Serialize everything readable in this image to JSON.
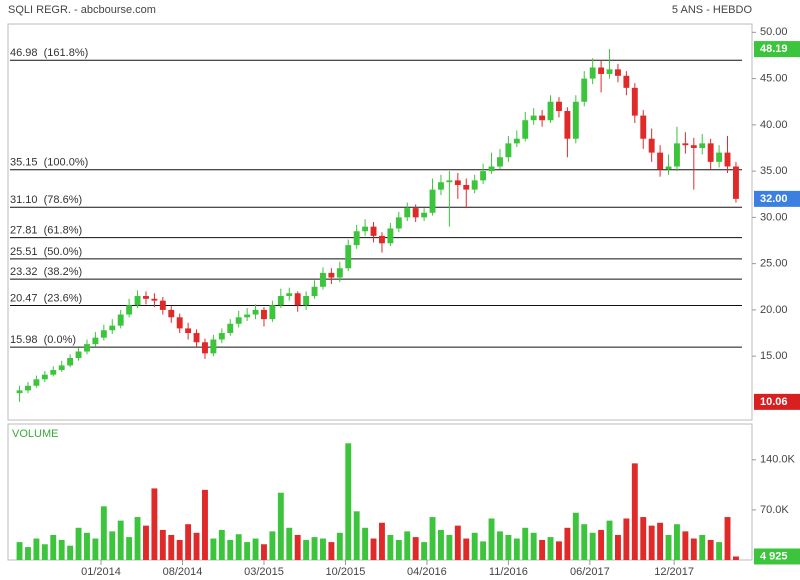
{
  "chart_data": {
    "type": "candlestick",
    "title": "SQLI REGR. - abcbourse.com",
    "subtitle": "5 ANS - HEBDO",
    "up_color": "#3cc43c",
    "down_color": "#e02a2a",
    "x": [
      2,
      5,
      8,
      11,
      14,
      17,
      20,
      23,
      26,
      29,
      32,
      35,
      38,
      41,
      44,
      47,
      50,
      53,
      56,
      59,
      62,
      65,
      68,
      71,
      74,
      77,
      80,
      83,
      86,
      89,
      92,
      95,
      98,
      101,
      104,
      107,
      110,
      113,
      116,
      119,
      122,
      125,
      128,
      131,
      134,
      137,
      140,
      143,
      146,
      149,
      152,
      155,
      158,
      161,
      164,
      167,
      170,
      173,
      176,
      179,
      182,
      185,
      188,
      191,
      194,
      197,
      200,
      203,
      206,
      209,
      212,
      215,
      218,
      221,
      224,
      227,
      230,
      233,
      236,
      239,
      242,
      245,
      248,
      251,
      254,
      257
    ],
    "open": [
      11.0,
      11.3,
      11.8,
      12.5,
      13.0,
      13.5,
      14.0,
      14.8,
      15.5,
      16.3,
      17.0,
      17.8,
      18.3,
      19.5,
      20.5,
      21.5,
      21.2,
      21.0,
      20.0,
      19.2,
      18.0,
      17.5,
      16.5,
      15.3,
      16.8,
      17.5,
      18.5,
      19.2,
      19.5,
      20.0,
      19.0,
      20.5,
      21.5,
      21.8,
      20.5,
      21.5,
      22.5,
      24.0,
      23.5,
      24.5,
      27.0,
      28.5,
      29.0,
      28.0,
      27.2,
      28.8,
      30.0,
      31.0,
      30.0,
      30.5,
      33.0,
      33.8,
      34.0,
      33.5,
      33.0,
      34.0,
      35.0,
      35.5,
      36.5,
      38.0,
      38.5,
      40.5,
      41.0,
      40.5,
      42.5,
      41.5,
      38.5,
      42.5,
      45.0,
      46.2,
      45.5,
      46.0,
      45.3,
      44.0,
      41.0,
      38.5,
      37.0,
      35.2,
      35.5,
      38.0,
      37.8,
      37.5,
      38.0,
      36.0,
      37.0,
      35.5
    ],
    "high": [
      11.8,
      12.2,
      12.9,
      13.4,
      13.9,
      14.5,
      15.2,
      15.9,
      16.8,
      17.6,
      18.4,
      19.0,
      20.0,
      21.2,
      22.1,
      22.0,
      21.8,
      21.4,
      20.4,
      19.6,
      18.6,
      17.9,
      16.9,
      17.3,
      18.0,
      19.0,
      19.9,
      20.2,
      20.6,
      20.3,
      21.0,
      22.3,
      22.4,
      22.0,
      22.0,
      23.2,
      24.6,
      24.5,
      25.2,
      27.6,
      29.2,
      29.8,
      29.5,
      28.4,
      29.4,
      30.6,
      31.6,
      31.4,
      31.0,
      34.2,
      34.6,
      35.0,
      34.8,
      34.2,
      34.6,
      35.8,
      37.0,
      37.4,
      38.8,
      39.4,
      41.4,
      41.8,
      41.6,
      43.2,
      43.0,
      41.9,
      43.2,
      45.8,
      47.2,
      46.9,
      48.19,
      46.6,
      45.8,
      44.5,
      41.6,
      39.6,
      37.8,
      36.8,
      39.8,
      39.2,
      38.6,
      39.0,
      38.5,
      37.8,
      38.8,
      36.0
    ],
    "low": [
      10.06,
      11.0,
      11.6,
      12.2,
      12.8,
      13.3,
      13.8,
      14.5,
      15.2,
      16.0,
      16.7,
      17.4,
      18.0,
      19.2,
      20.2,
      20.6,
      20.3,
      19.5,
      18.6,
      17.5,
      16.8,
      16.0,
      14.7,
      15.0,
      16.4,
      17.2,
      18.1,
      18.8,
      19.0,
      18.2,
      18.7,
      20.2,
      21.0,
      19.8,
      20.0,
      21.2,
      22.2,
      22.8,
      23.0,
      24.2,
      26.6,
      28.0,
      27.3,
      26.2,
      26.9,
      28.4,
      29.6,
      29.5,
      29.6,
      30.2,
      32.4,
      29.0,
      32.0,
      31.0,
      32.6,
      33.6,
      34.7,
      35.2,
      36.0,
      37.6,
      38.2,
      40.0,
      39.8,
      40.2,
      40.8,
      36.5,
      38.0,
      42.0,
      44.4,
      43.5,
      45.0,
      44.6,
      43.2,
      40.2,
      37.4,
      36.0,
      34.4,
      34.6,
      35.0,
      36.9,
      33.0,
      36.8,
      35.2,
      35.4,
      34.8,
      31.6
    ],
    "close": [
      11.3,
      11.8,
      12.5,
      13.0,
      13.5,
      14.0,
      14.8,
      15.5,
      16.3,
      17.0,
      17.8,
      18.3,
      19.5,
      20.5,
      21.5,
      21.2,
      21.0,
      20.0,
      19.2,
      18.0,
      17.5,
      16.5,
      15.3,
      16.8,
      17.5,
      18.5,
      19.2,
      19.5,
      20.0,
      19.0,
      20.5,
      21.5,
      21.8,
      20.5,
      21.5,
      22.5,
      24.0,
      23.5,
      24.5,
      27.0,
      28.5,
      29.0,
      28.0,
      27.2,
      28.8,
      30.0,
      31.0,
      30.0,
      30.5,
      33.0,
      33.8,
      34.0,
      33.5,
      33.0,
      34.0,
      35.0,
      35.5,
      36.5,
      38.0,
      38.5,
      40.5,
      41.0,
      40.5,
      42.5,
      41.5,
      38.5,
      42.5,
      45.0,
      46.2,
      45.5,
      46.0,
      45.3,
      44.0,
      41.0,
      38.5,
      37.0,
      35.2,
      35.5,
      38.0,
      37.8,
      37.5,
      38.0,
      36.0,
      37.0,
      35.5,
      32.0
    ],
    "xlim": [
      -1.4,
      262
    ],
    "xticks": [
      {
        "value": 31,
        "label": "01/2014"
      },
      {
        "value": 60,
        "label": "08/2014"
      },
      {
        "value": 89,
        "label": "03/2015"
      },
      {
        "value": 118,
        "label": "10/2015"
      },
      {
        "value": 147,
        "label": "04/2016"
      },
      {
        "value": 176,
        "label": "11/2016"
      },
      {
        "value": 205,
        "label": "06/2017"
      },
      {
        "value": 235,
        "label": "12/2017"
      }
    ],
    "ylim": [
      8.1,
      50.9
    ],
    "yticks": [
      {
        "value": 15,
        "label": "15.00"
      },
      {
        "value": 20,
        "label": "20.00"
      },
      {
        "value": 25,
        "label": "25.00"
      },
      {
        "value": 30,
        "label": "30.00"
      },
      {
        "value": 35,
        "label": "35.00"
      },
      {
        "value": 40,
        "label": "40.00"
      },
      {
        "value": 45,
        "label": "45.00"
      },
      {
        "value": 50,
        "label": "50.00"
      }
    ],
    "fib_levels": [
      {
        "value": 46.98,
        "label": "46.98  (161.8%)"
      },
      {
        "value": 35.15,
        "label": "35.15  (100.0%)"
      },
      {
        "value": 31.1,
        "label": "31.10  (78.6%)"
      },
      {
        "value": 27.81,
        "label": "27.81  (61.8%)"
      },
      {
        "value": 25.51,
        "label": "25.51  (50.0%)"
      },
      {
        "value": 23.32,
        "label": "23.32  (38.2%)"
      },
      {
        "value": 20.47,
        "label": "20.47  (23.6%)"
      },
      {
        "value": 15.98,
        "label": "15.98  (0.0%)"
      }
    ],
    "markers": [
      {
        "value": 48.19,
        "label": "48.19",
        "color": "#3cc43c"
      },
      {
        "value": 32.0,
        "label": "32.00",
        "color": "#3b7fe0"
      },
      {
        "value": 10.06,
        "label": "10.06",
        "color": "#d82020"
      }
    ],
    "volume": {
      "title": "VOLUME",
      "values": [
        25000,
        18000,
        30000,
        22000,
        35000,
        28000,
        20000,
        45000,
        38000,
        30000,
        75000,
        40000,
        55000,
        32000,
        60000,
        48000,
        100000,
        42000,
        35000,
        28000,
        50000,
        38000,
        98000,
        30000,
        42000,
        28000,
        36000,
        25000,
        30000,
        22000,
        40000,
        94000,
        45000,
        35000,
        28000,
        32000,
        30000,
        25000,
        38000,
        163000,
        68000,
        45000,
        30000,
        52000,
        35000,
        28000,
        40000,
        32000,
        25000,
        60000,
        42000,
        35000,
        48000,
        30000,
        38000,
        26000,
        58000,
        40000,
        35000,
        30000,
        45000,
        38000,
        28000,
        32000,
        26000,
        45000,
        66000,
        50000,
        38000,
        42000,
        55000,
        35000,
        58000,
        135000,
        60000,
        48000,
        52000,
        35000,
        50000,
        40000,
        30000,
        35000,
        28000,
        25000,
        60000,
        4925
      ],
      "ylim": [
        0,
        190000
      ],
      "yticks": [
        {
          "value": 70000,
          "label": "70.0K"
        },
        {
          "value": 140000,
          "label": "140.0K"
        }
      ],
      "marker": {
        "value": 4925,
        "label": "4 925",
        "color": "#3cc43c"
      }
    }
  }
}
